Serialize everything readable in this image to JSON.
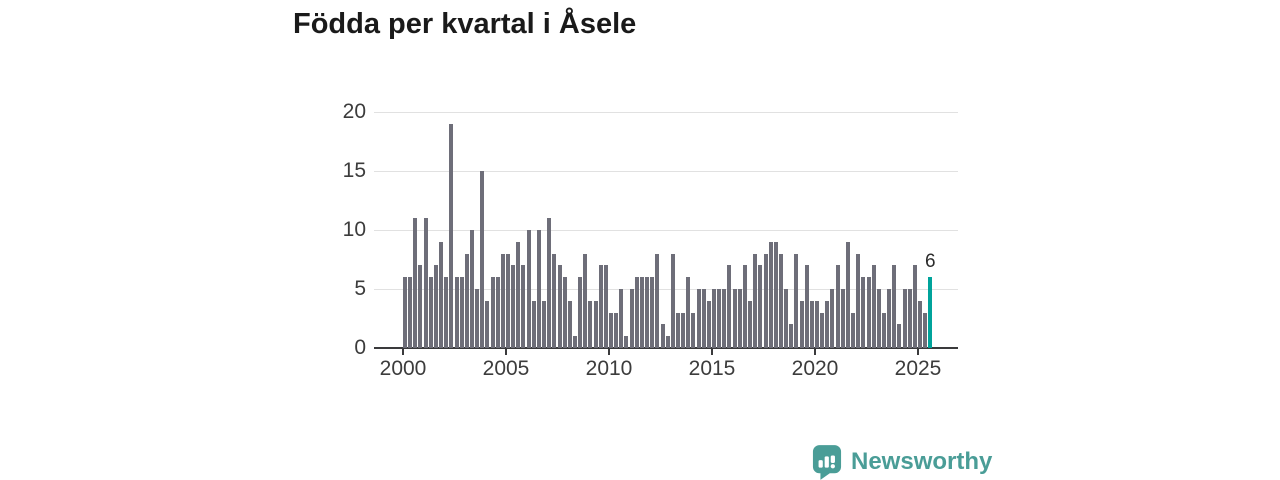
{
  "title": "Födda per kvartal i Åsele",
  "branding": {
    "logo_text": "Newsworthy"
  },
  "colors": {
    "bar": "#6e6e79",
    "highlight": "#00a39b",
    "title_text": "#1a1a1a",
    "axis_text": "#3c3c3c",
    "axis_line": "#3a3a3c",
    "gridline": "#e1e1e1",
    "logo": "#4a9d97",
    "background": "#ffffff"
  },
  "chart_data": {
    "type": "bar",
    "title": "Födda per kvartal i Åsele",
    "x_start_quarter": "2000-Q1",
    "x_end_quarter": "2025-Q3",
    "x_unit": "quarter",
    "values": [
      6,
      6,
      11,
      7,
      11,
      6,
      7,
      9,
      6,
      19,
      6,
      6,
      8,
      10,
      5,
      15,
      4,
      6,
      6,
      8,
      8,
      7,
      9,
      7,
      10,
      4,
      10,
      4,
      11,
      8,
      7,
      6,
      4,
      1,
      6,
      8,
      4,
      4,
      7,
      7,
      3,
      3,
      5,
      1,
      5,
      6,
      6,
      6,
      6,
      8,
      2,
      1,
      8,
      3,
      3,
      6,
      3,
      5,
      5,
      4,
      5,
      5,
      5,
      7,
      5,
      5,
      7,
      4,
      8,
      7,
      8,
      9,
      9,
      8,
      5,
      2,
      8,
      4,
      7,
      4,
      4,
      3,
      4,
      5,
      7,
      5,
      9,
      3,
      8,
      6,
      6,
      7,
      5,
      3,
      5,
      7,
      2,
      5,
      5,
      7,
      4,
      3,
      6
    ],
    "highlight": {
      "index": 102,
      "quarter": "2025-Q3",
      "value": 6,
      "label": "6"
    },
    "y_ticks": [
      0,
      5,
      10,
      15,
      20
    ],
    "x_ticks": [
      2000,
      2005,
      2010,
      2015,
      2020,
      2025
    ],
    "ylim": [
      0,
      20
    ],
    "grid": true,
    "legend": false
  }
}
